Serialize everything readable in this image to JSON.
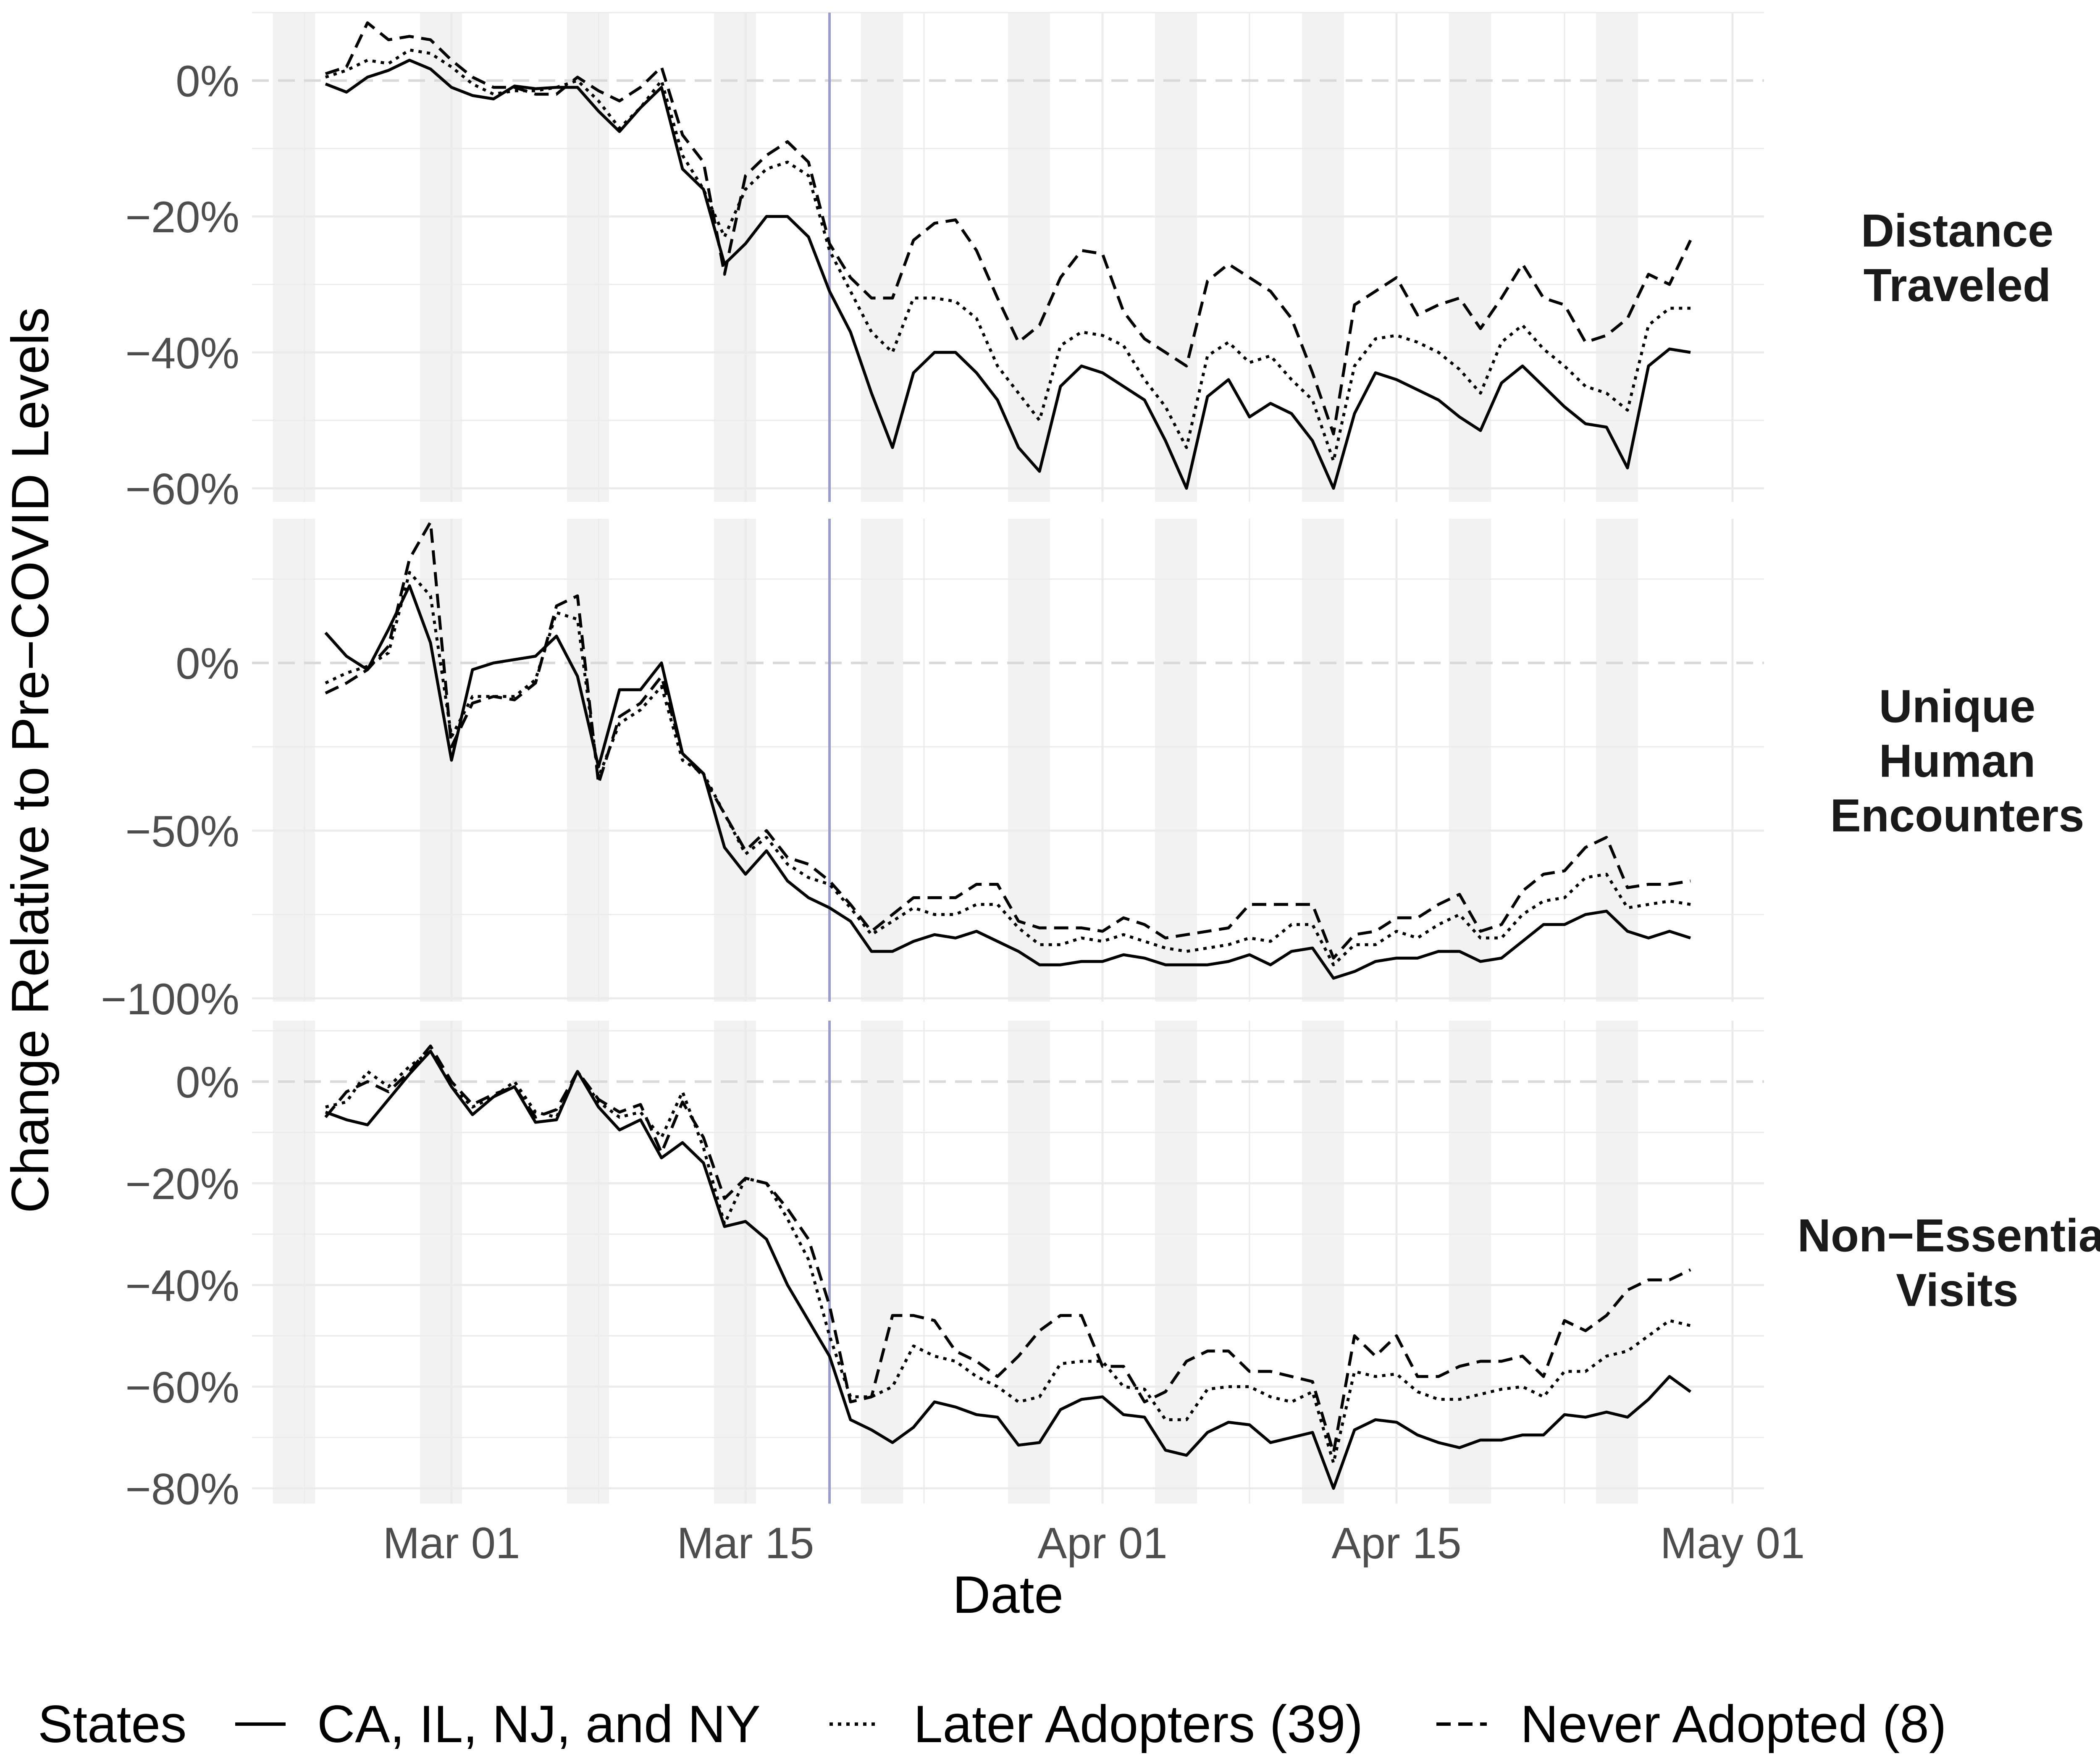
{
  "chart_data": {
    "type": "line",
    "xlabel": "Date",
    "ylabel": "Change Relative to Pre−COVID Levels",
    "x_start": "Feb 24",
    "x_end": "Apr 30",
    "x_ticks": [
      "Mar 01",
      "Mar 15",
      "Apr 01",
      "Apr 15",
      "May 01"
    ],
    "reference_line": "Mar 19",
    "weekend_shading": true,
    "grid": true,
    "legend": {
      "title": "States",
      "position": "bottom",
      "entries": [
        {
          "label": "CA, IL, NJ, and NY",
          "linetype": "solid"
        },
        {
          "label": "Later Adopters (39)",
          "linetype": "dotted"
        },
        {
          "label": "Never Adopted (8)",
          "linetype": "dashed"
        }
      ]
    },
    "colors": {
      "line": "#000000",
      "reference_line": "#9c9ccc",
      "weekend_band": "#f2f2f2",
      "grid": "#ebebeb",
      "zero_line": "#d9d9d9"
    },
    "panels": [
      {
        "strip": [
          "Distance",
          "Traveled"
        ],
        "ylim": [
          -0.62,
          0.1
        ],
        "y_ticks": [
          0,
          -0.2,
          -0.4,
          -0.6
        ],
        "y_tick_labels": [
          "0%",
          "−20%",
          "−40%",
          "−60%"
        ],
        "series": [
          {
            "linetype": "solid",
            "values": [
              -0.005,
              -0.017,
              0.005,
              0.015,
              0.03,
              0.017,
              -0.01,
              -0.022,
              -0.027,
              -0.008,
              -0.012,
              -0.01,
              -0.01,
              -0.045,
              -0.075,
              -0.04,
              -0.01,
              -0.13,
              -0.16,
              -0.27,
              -0.24,
              -0.2,
              -0.2,
              -0.23,
              -0.31,
              -0.37,
              -0.46,
              -0.54,
              -0.43,
              -0.4,
              -0.4,
              -0.43,
              -0.47,
              -0.54,
              -0.575,
              -0.45,
              -0.42,
              -0.43,
              -0.45,
              -0.47,
              -0.53,
              -0.6,
              -0.465,
              -0.44,
              -0.495,
              -0.475,
              -0.49,
              -0.53,
              -0.6,
              -0.49,
              -0.43,
              -0.44,
              -0.455,
              -0.47,
              -0.495,
              -0.515,
              -0.445,
              -0.42,
              -0.45,
              -0.48,
              -0.505,
              -0.51,
              -0.57,
              -0.42,
              -0.395,
              -0.4
            ]
          },
          {
            "linetype": "dotted",
            "values": [
              0.005,
              0.015,
              0.03,
              0.025,
              0.045,
              0.04,
              0.02,
              -0.005,
              -0.02,
              -0.015,
              -0.015,
              -0.01,
              0.0,
              -0.03,
              -0.07,
              -0.04,
              0.0,
              -0.11,
              -0.16,
              -0.23,
              -0.16,
              -0.13,
              -0.12,
              -0.14,
              -0.25,
              -0.31,
              -0.37,
              -0.4,
              -0.32,
              -0.32,
              -0.325,
              -0.35,
              -0.42,
              -0.46,
              -0.5,
              -0.39,
              -0.37,
              -0.375,
              -0.39,
              -0.44,
              -0.48,
              -0.54,
              -0.405,
              -0.385,
              -0.415,
              -0.405,
              -0.44,
              -0.47,
              -0.56,
              -0.42,
              -0.38,
              -0.375,
              -0.385,
              -0.4,
              -0.425,
              -0.46,
              -0.385,
              -0.36,
              -0.395,
              -0.42,
              -0.45,
              -0.46,
              -0.485,
              -0.36,
              -0.335,
              -0.335
            ]
          },
          {
            "linetype": "dashed",
            "values": [
              0.01,
              0.02,
              0.085,
              0.06,
              0.065,
              0.06,
              0.03,
              0.005,
              -0.01,
              -0.01,
              -0.02,
              -0.02,
              0.005,
              -0.015,
              -0.03,
              -0.01,
              0.02,
              -0.08,
              -0.12,
              -0.285,
              -0.14,
              -0.11,
              -0.09,
              -0.12,
              -0.24,
              -0.29,
              -0.32,
              -0.32,
              -0.235,
              -0.21,
              -0.205,
              -0.25,
              -0.32,
              -0.385,
              -0.36,
              -0.29,
              -0.25,
              -0.255,
              -0.34,
              -0.38,
              -0.4,
              -0.42,
              -0.295,
              -0.27,
              -0.29,
              -0.31,
              -0.35,
              -0.43,
              -0.52,
              -0.33,
              -0.31,
              -0.29,
              -0.345,
              -0.33,
              -0.32,
              -0.365,
              -0.32,
              -0.27,
              -0.32,
              -0.33,
              -0.385,
              -0.375,
              -0.35,
              -0.285,
              -0.3,
              -0.235
            ]
          }
        ]
      },
      {
        "strip": [
          "Unique",
          "Human",
          "Encounters"
        ],
        "ylim": [
          -1.01,
          0.43
        ],
        "y_ticks": [
          0,
          -0.5,
          -1.0
        ],
        "y_tick_labels": [
          "0%",
          "−50%",
          "−100%"
        ],
        "series": [
          {
            "linetype": "solid",
            "values": [
              0.09,
              0.02,
              -0.02,
              0.1,
              0.23,
              0.06,
              -0.29,
              -0.02,
              0.0,
              0.01,
              0.02,
              0.08,
              -0.04,
              -0.31,
              -0.08,
              -0.08,
              0.0,
              -0.27,
              -0.33,
              -0.55,
              -0.63,
              -0.56,
              -0.65,
              -0.7,
              -0.73,
              -0.77,
              -0.86,
              -0.86,
              -0.83,
              -0.81,
              -0.82,
              -0.8,
              -0.83,
              -0.86,
              -0.9,
              -0.9,
              -0.89,
              -0.89,
              -0.87,
              -0.88,
              -0.9,
              -0.9,
              -0.9,
              -0.89,
              -0.87,
              -0.9,
              -0.86,
              -0.85,
              -0.94,
              -0.92,
              -0.89,
              -0.88,
              -0.88,
              -0.86,
              -0.86,
              -0.89,
              -0.88,
              -0.83,
              -0.78,
              -0.78,
              -0.75,
              -0.74,
              -0.8,
              -0.82,
              -0.8,
              -0.82
            ]
          },
          {
            "linetype": "dotted",
            "values": [
              -0.06,
              -0.03,
              -0.01,
              0.03,
              0.27,
              0.2,
              -0.22,
              -0.1,
              -0.1,
              -0.1,
              -0.05,
              0.15,
              0.13,
              -0.34,
              -0.18,
              -0.14,
              -0.07,
              -0.29,
              -0.33,
              -0.45,
              -0.57,
              -0.52,
              -0.6,
              -0.64,
              -0.66,
              -0.73,
              -0.81,
              -0.77,
              -0.73,
              -0.75,
              -0.75,
              -0.72,
              -0.72,
              -0.79,
              -0.84,
              -0.84,
              -0.82,
              -0.83,
              -0.81,
              -0.83,
              -0.85,
              -0.86,
              -0.85,
              -0.84,
              -0.82,
              -0.83,
              -0.78,
              -0.78,
              -0.9,
              -0.84,
              -0.84,
              -0.8,
              -0.82,
              -0.78,
              -0.75,
              -0.82,
              -0.82,
              -0.75,
              -0.71,
              -0.7,
              -0.64,
              -0.63,
              -0.73,
              -0.72,
              -0.71,
              -0.72
            ]
          },
          {
            "linetype": "dashed",
            "values": [
              -0.09,
              -0.06,
              -0.02,
              0.05,
              0.31,
              0.42,
              -0.25,
              -0.12,
              -0.1,
              -0.11,
              -0.06,
              0.17,
              0.2,
              -0.36,
              -0.16,
              -0.12,
              -0.04,
              -0.27,
              -0.34,
              -0.45,
              -0.56,
              -0.5,
              -0.58,
              -0.6,
              -0.65,
              -0.72,
              -0.8,
              -0.75,
              -0.7,
              -0.7,
              -0.7,
              -0.66,
              -0.66,
              -0.77,
              -0.79,
              -0.79,
              -0.79,
              -0.8,
              -0.76,
              -0.78,
              -0.82,
              -0.81,
              -0.8,
              -0.79,
              -0.72,
              -0.72,
              -0.72,
              -0.72,
              -0.88,
              -0.81,
              -0.8,
              -0.76,
              -0.76,
              -0.72,
              -0.69,
              -0.8,
              -0.78,
              -0.68,
              -0.63,
              -0.62,
              -0.55,
              -0.52,
              -0.67,
              -0.66,
              -0.66,
              -0.65
            ]
          }
        ]
      },
      {
        "strip": [
          "Non−Essential",
          "Visits"
        ],
        "ylim": [
          -0.83,
          0.12
        ],
        "y_ticks": [
          0,
          -0.2,
          -0.4,
          -0.6,
          -0.8
        ],
        "y_tick_labels": [
          "0%",
          "−20%",
          "−40%",
          "−60%",
          "−80%"
        ],
        "series": [
          {
            "linetype": "solid",
            "values": [
              -0.06,
              -0.075,
              -0.085,
              -0.035,
              0.015,
              0.06,
              -0.01,
              -0.065,
              -0.03,
              -0.01,
              -0.08,
              -0.075,
              0.02,
              -0.05,
              -0.095,
              -0.075,
              -0.15,
              -0.12,
              -0.16,
              -0.285,
              -0.275,
              -0.31,
              -0.4,
              -0.47,
              -0.54,
              -0.665,
              -0.685,
              -0.71,
              -0.68,
              -0.63,
              -0.64,
              -0.655,
              -0.66,
              -0.715,
              -0.71,
              -0.645,
              -0.625,
              -0.62,
              -0.655,
              -0.66,
              -0.725,
              -0.735,
              -0.69,
              -0.67,
              -0.675,
              -0.71,
              -0.7,
              -0.69,
              -0.8,
              -0.685,
              -0.665,
              -0.67,
              -0.695,
              -0.71,
              -0.72,
              -0.705,
              -0.705,
              -0.695,
              -0.695,
              -0.655,
              -0.66,
              -0.65,
              -0.66,
              -0.625,
              -0.58,
              -0.61
            ]
          },
          {
            "linetype": "dotted",
            "values": [
              -0.05,
              -0.04,
              0.02,
              -0.01,
              0.03,
              0.06,
              -0.01,
              -0.05,
              -0.03,
              0.0,
              -0.06,
              -0.07,
              0.02,
              -0.04,
              -0.07,
              -0.06,
              -0.11,
              -0.02,
              -0.13,
              -0.28,
              -0.19,
              -0.2,
              -0.27,
              -0.35,
              -0.5,
              -0.62,
              -0.62,
              -0.6,
              -0.52,
              -0.54,
              -0.55,
              -0.58,
              -0.6,
              -0.63,
              -0.62,
              -0.555,
              -0.55,
              -0.55,
              -0.6,
              -0.605,
              -0.665,
              -0.665,
              -0.605,
              -0.6,
              -0.6,
              -0.62,
              -0.63,
              -0.61,
              -0.75,
              -0.57,
              -0.58,
              -0.575,
              -0.61,
              -0.625,
              -0.625,
              -0.615,
              -0.605,
              -0.6,
              -0.62,
              -0.57,
              -0.57,
              -0.54,
              -0.53,
              -0.5,
              -0.47,
              -0.48
            ]
          },
          {
            "linetype": "dashed",
            "values": [
              -0.07,
              -0.02,
              0.0,
              -0.02,
              0.02,
              0.07,
              0.0,
              -0.045,
              -0.025,
              -0.01,
              -0.07,
              -0.055,
              0.02,
              -0.035,
              -0.06,
              -0.045,
              -0.14,
              -0.04,
              -0.11,
              -0.23,
              -0.19,
              -0.2,
              -0.25,
              -0.31,
              -0.44,
              -0.63,
              -0.62,
              -0.46,
              -0.46,
              -0.47,
              -0.53,
              -0.55,
              -0.58,
              -0.54,
              -0.49,
              -0.46,
              -0.46,
              -0.56,
              -0.56,
              -0.63,
              -0.61,
              -0.55,
              -0.53,
              -0.53,
              -0.57,
              -0.57,
              -0.58,
              -0.59,
              -0.73,
              -0.5,
              -0.54,
              -0.5,
              -0.58,
              -0.58,
              -0.56,
              -0.55,
              -0.55,
              -0.54,
              -0.58,
              -0.47,
              -0.49,
              -0.46,
              -0.41,
              -0.39,
              -0.39,
              -0.37
            ]
          }
        ]
      }
    ]
  }
}
